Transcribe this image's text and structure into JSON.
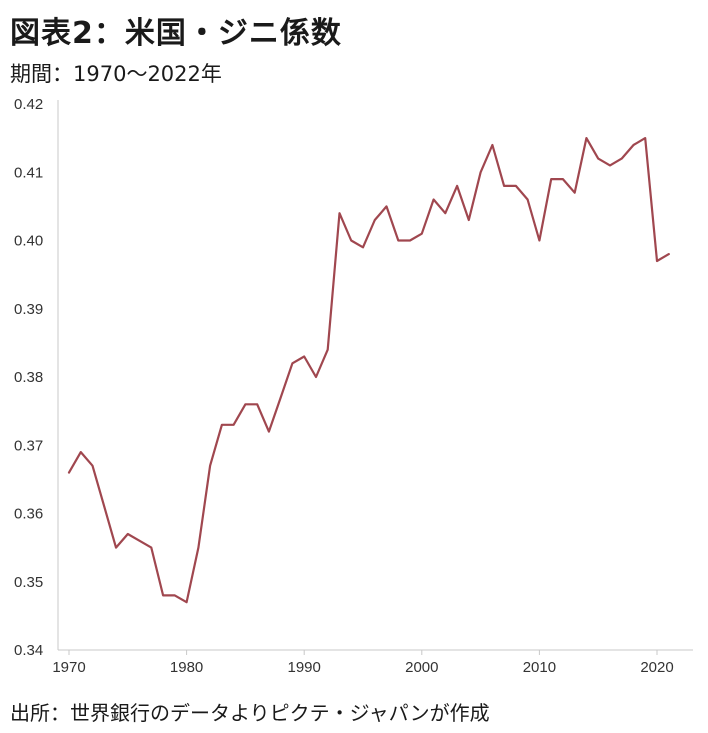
{
  "header": {
    "title": "図表2：米国・ジニ係数",
    "subtitle": "期間：1970〜2022年"
  },
  "footer": {
    "source": "出所：世界銀行のデータよりピクテ・ジャパンが作成"
  },
  "chart_data": {
    "type": "line",
    "title": "図表2：米国・ジニ係数",
    "xlabel": "",
    "ylabel": "",
    "xlim": [
      1970,
      2021
    ],
    "ylim": [
      0.34,
      0.42
    ],
    "x_ticks": [
      1970,
      1980,
      1990,
      2000,
      2010,
      2020
    ],
    "y_ticks": [
      0.34,
      0.35,
      0.36,
      0.37,
      0.38,
      0.39,
      0.4,
      0.41,
      0.42
    ],
    "y_tick_labels": [
      "0.34",
      "0.35",
      "0.36",
      "0.37",
      "0.38",
      "0.39",
      "0.40",
      "0.41",
      "0.42"
    ],
    "grid": false,
    "line_color": "#a0474f",
    "series": [
      {
        "x": [
          1970,
          1971,
          1972,
          1973,
          1974,
          1975,
          1976,
          1977,
          1978,
          1979,
          1980,
          1981,
          1982,
          1983,
          1984,
          1985,
          1986,
          1987,
          1988,
          1989,
          1990,
          1991,
          1992,
          1993,
          1994,
          1995,
          1996,
          1997,
          1998,
          1999,
          2000,
          2001,
          2002,
          2003,
          2004,
          2005,
          2006,
          2007,
          2008,
          2009,
          2010,
          2011,
          2012,
          2013,
          2014,
          2015,
          2016,
          2017,
          2018,
          2019,
          2020,
          2021
        ],
        "values": [
          0.366,
          0.369,
          0.367,
          0.361,
          0.355,
          0.357,
          0.356,
          0.355,
          0.348,
          0.348,
          0.347,
          0.355,
          0.367,
          0.373,
          0.373,
          0.376,
          0.376,
          0.372,
          0.377,
          0.382,
          0.383,
          0.38,
          0.384,
          0.404,
          0.4,
          0.399,
          0.403,
          0.405,
          0.4,
          0.4,
          0.401,
          0.406,
          0.404,
          0.408,
          0.403,
          0.41,
          0.414,
          0.408,
          0.408,
          0.406,
          0.4,
          0.409,
          0.409,
          0.407,
          0.415,
          0.412,
          0.411,
          0.412,
          0.414,
          0.415,
          0.397,
          0.398
        ]
      }
    ]
  }
}
